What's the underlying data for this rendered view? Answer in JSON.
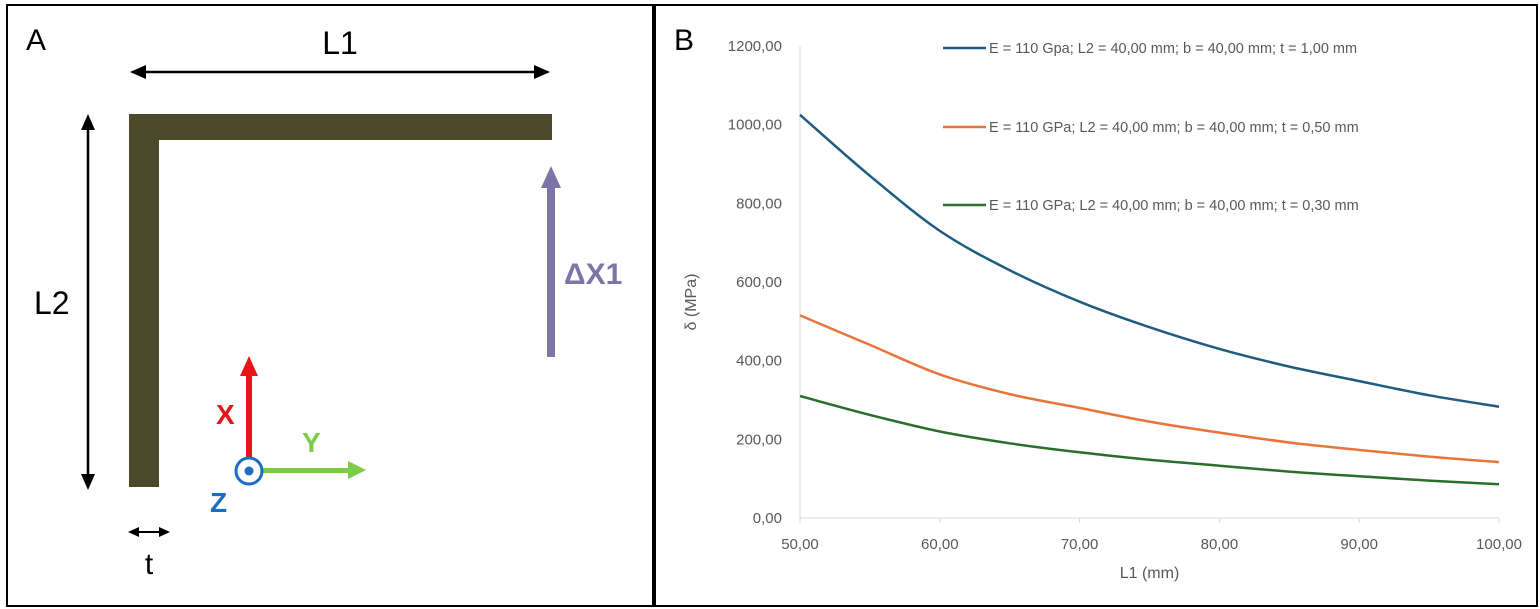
{
  "panel_a": {
    "panel_label": "A",
    "labels": {
      "l1": "L1",
      "l2": "L2",
      "t": "t",
      "delta": "ΔX1",
      "x_axis": "X",
      "y_axis": "Y",
      "z_axis": "Z"
    },
    "colors": {
      "beam": "#4b4b2c",
      "delta_arrow": "#7b76a6",
      "x_axis": "#e8141a",
      "y_axis": "#7ccc49",
      "z_axis": "#1a6fc0",
      "dimension": "#000000"
    }
  },
  "panel_b": {
    "panel_label": "B",
    "chart_data": {
      "type": "line",
      "title": "",
      "xlabel": "L1 (mm)",
      "ylabel": "δ (MPa)",
      "xlim": [
        50,
        100
      ],
      "ylim": [
        0,
        1200
      ],
      "x_ticks": [
        "50,00",
        "60,00",
        "70,00",
        "80,00",
        "90,00",
        "100,00"
      ],
      "y_ticks": [
        "0,00",
        "200,00",
        "400,00",
        "600,00",
        "800,00",
        "1000,00",
        "1200,00"
      ],
      "grid": false,
      "legend_position": "top-right",
      "x": [
        50,
        55,
        60,
        65,
        70,
        75,
        80,
        85,
        90,
        95,
        100
      ],
      "series": [
        {
          "name": "E = 110 Gpa; L2 = 40,00 mm; b = 40,00 mm; t = 1,00 mm",
          "color": "#1f5c7f",
          "values": [
            1025,
            870,
            730,
            630,
            550,
            485,
            430,
            385,
            348,
            312,
            283
          ]
        },
        {
          "name": "E = 110 GPa; L2 = 40,00 mm; b = 40,00 mm; t = 0,50 mm",
          "color": "#e8743b",
          "values": [
            515,
            440,
            365,
            315,
            280,
            245,
            217,
            192,
            173,
            156,
            142
          ]
        },
        {
          "name": "E = 110 GPa; L2 = 40,00 mm; b = 40,00 mm; t = 0,30 mm",
          "color": "#2a6e2c",
          "values": [
            310,
            262,
            220,
            190,
            167,
            148,
            133,
            118,
            106,
            95,
            86
          ]
        }
      ]
    }
  }
}
